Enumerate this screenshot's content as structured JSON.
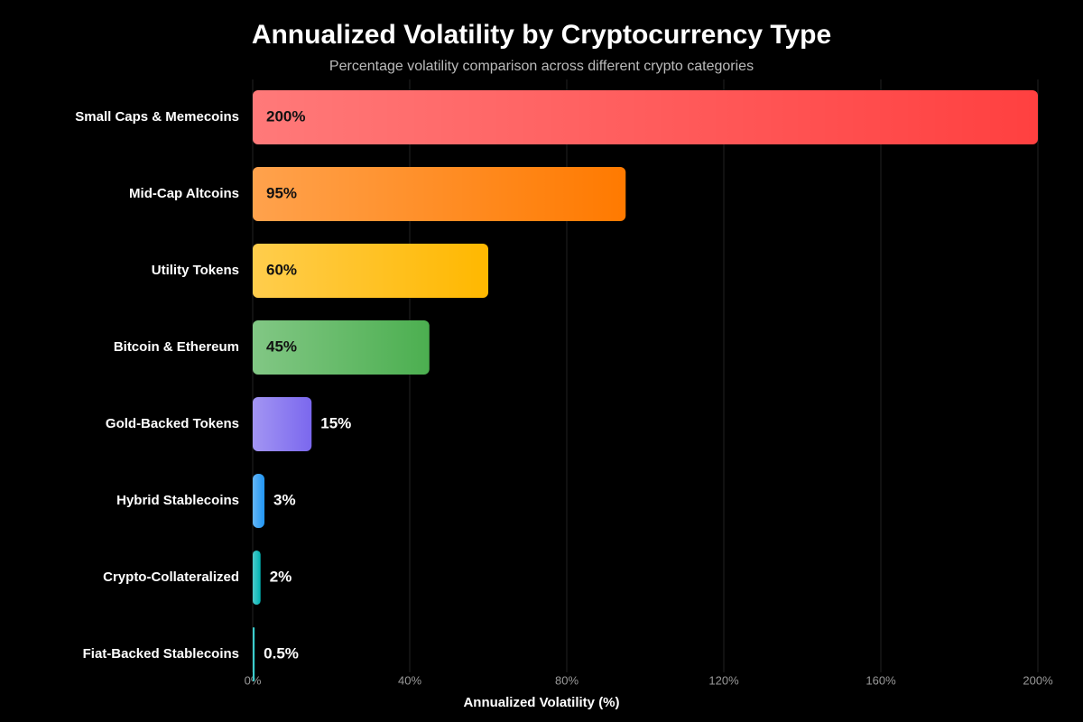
{
  "chart_data": {
    "type": "bar",
    "orientation": "horizontal",
    "title": "Annualized Volatility by Cryptocurrency Type",
    "subtitle": "Percentage volatility comparison across different crypto categories",
    "x_label": "Annualized Volatility (%)",
    "categories": [
      "Small Caps & Memecoins",
      "Mid-Cap Altcoins",
      "Utility Tokens",
      "Bitcoin & Ethereum",
      "Gold-Backed Tokens",
      "Hybrid Stablecoins",
      "Crypto-Collateralized",
      "Fiat-Backed Stablecoins"
    ],
    "values": [
      200,
      95,
      60,
      45,
      15,
      3,
      2,
      0.5
    ],
    "value_labels": [
      "200%",
      "95%",
      "60%",
      "45%",
      "15%",
      "3%",
      "2%",
      "0.5%"
    ],
    "colors": [
      "#ff4040",
      "#ff7a00",
      "#ffb800",
      "#4caf50",
      "#7b68ee",
      "#2196f3",
      "#00b3b3",
      "#17c1c1"
    ],
    "xlim": [
      0,
      200
    ],
    "xticks": [
      {
        "value": 0,
        "label": "0%"
      },
      {
        "value": 40,
        "label": "40%"
      },
      {
        "value": 80,
        "label": "80%"
      },
      {
        "value": 120,
        "label": "120%"
      },
      {
        "value": 160,
        "label": "160%"
      },
      {
        "value": 200,
        "label": "200%"
      }
    ],
    "grid": true
  }
}
